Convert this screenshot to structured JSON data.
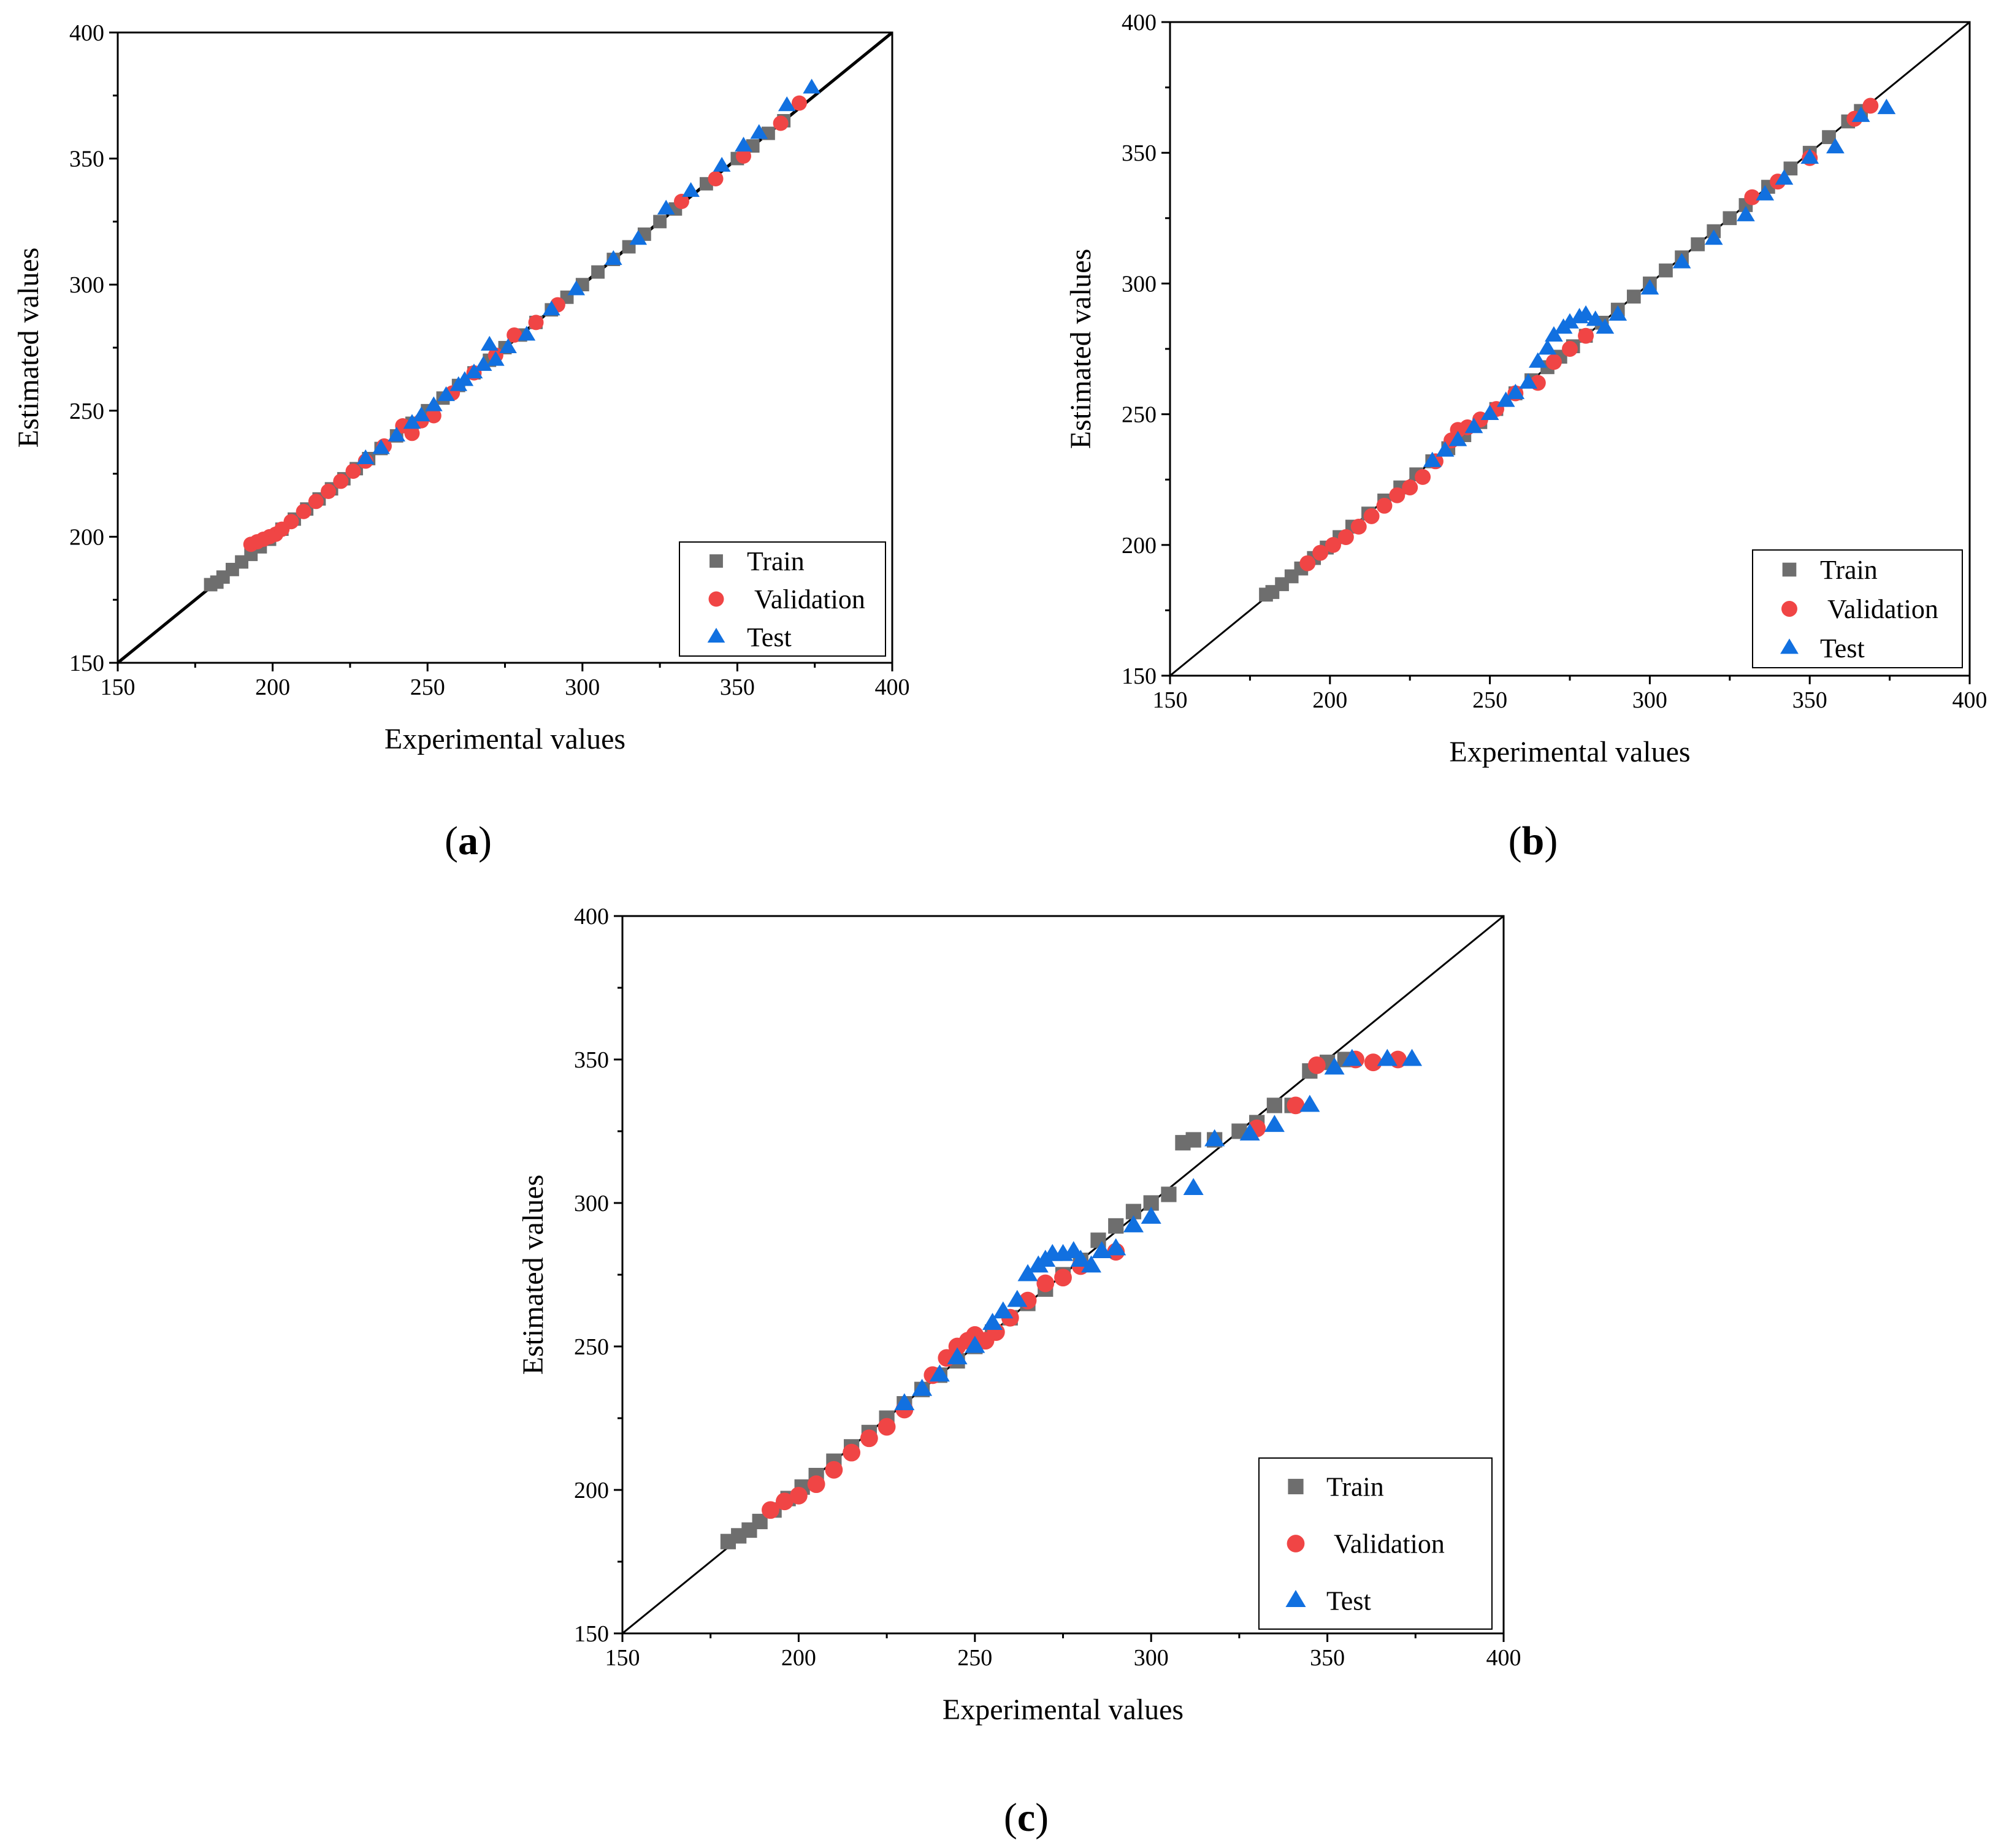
{
  "figure": {
    "colors": {
      "train": "#6e6e6e",
      "validation": "#f04545",
      "test": "#1170e0",
      "frame": "#000000"
    },
    "markers": {
      "train": "square",
      "validation": "circle",
      "test": "triangle"
    }
  },
  "chart_data": [
    {
      "type": "scatter",
      "id": "a",
      "panel_label": {
        "open": "(",
        "letter": "a",
        "close": ")"
      },
      "title": "",
      "xlabel": "Experimental values",
      "ylabel": "Estimated values",
      "xlim": [
        150,
        400
      ],
      "ylim": [
        150,
        400
      ],
      "xticks": [
        150,
        200,
        250,
        300,
        350,
        400
      ],
      "yticks": [
        150,
        200,
        250,
        300,
        350,
        400
      ],
      "grid": false,
      "reference_line": "y = x",
      "legend": {
        "position": "bottom-right",
        "entries": [
          "Train",
          "Validation",
          "Test"
        ]
      },
      "series": [
        {
          "name": "Train",
          "x": [
            180,
            182,
            184,
            187,
            190,
            193,
            196,
            199,
            203,
            207,
            211,
            215,
            219,
            223,
            227,
            231,
            235,
            240,
            245,
            250,
            255,
            260,
            265,
            270,
            275,
            280,
            285,
            290,
            295,
            300,
            305,
            310,
            315,
            320,
            325,
            330,
            340,
            350,
            355,
            360,
            365
          ],
          "y": [
            181,
            182,
            184,
            187,
            190,
            193,
            196,
            199,
            203,
            207,
            211,
            215,
            219,
            223,
            227,
            231,
            235,
            240,
            245,
            250,
            255,
            260,
            265,
            270,
            275,
            280,
            285,
            290,
            295,
            300,
            305,
            310,
            315,
            320,
            325,
            330,
            340,
            350,
            355,
            360,
            365
          ]
        },
        {
          "name": "Validation",
          "x": [
            193,
            195,
            197,
            199,
            201,
            203,
            206,
            210,
            214,
            218,
            222,
            226,
            230,
            236,
            242,
            245,
            248,
            252,
            258,
            265,
            272,
            278,
            285,
            292,
            332,
            343,
            352,
            364,
            370
          ],
          "y": [
            197,
            198,
            199,
            200,
            201,
            203,
            206,
            210,
            214,
            218,
            222,
            226,
            230,
            236,
            244,
            241,
            246,
            248,
            257,
            265,
            272,
            280,
            285,
            292,
            333,
            342,
            351,
            364,
            372
          ]
        },
        {
          "name": "Test",
          "x": [
            230,
            235,
            240,
            245,
            248,
            252,
            256,
            260,
            262,
            265,
            268,
            270,
            272,
            276,
            282,
            290,
            298,
            310,
            318,
            327,
            335,
            345,
            352,
            357,
            366,
            374
          ],
          "y": [
            231,
            235,
            240,
            245,
            248,
            252,
            256,
            260,
            262,
            265,
            268,
            276,
            270,
            275,
            280,
            290,
            298,
            310,
            318,
            330,
            337,
            347,
            355,
            360,
            371,
            378
          ]
        }
      ]
    },
    {
      "type": "scatter",
      "id": "b",
      "panel_label": {
        "open": "(",
        "letter": "b",
        "close": ")"
      },
      "title": "",
      "xlabel": "Experimental values",
      "ylabel": "Estimated values",
      "xlim": [
        150,
        400
      ],
      "ylim": [
        150,
        400
      ],
      "xticks": [
        150,
        200,
        250,
        300,
        350,
        400
      ],
      "yticks": [
        150,
        200,
        250,
        300,
        350,
        400
      ],
      "grid": false,
      "reference_line": "y = x",
      "legend": {
        "position": "bottom-right",
        "entries": [
          "Train",
          "Validation",
          "Test"
        ]
      },
      "series": [
        {
          "name": "Train",
          "x": [
            180,
            182,
            185,
            188,
            191,
            195,
            199,
            203,
            207,
            212,
            217,
            222,
            227,
            232,
            237,
            242,
            247,
            252,
            258,
            263,
            268,
            272,
            276,
            280,
            285,
            290,
            295,
            300,
            305,
            310,
            315,
            320,
            325,
            330,
            337,
            344,
            350,
            356,
            362,
            366
          ],
          "y": [
            181,
            182,
            185,
            188,
            191,
            195,
            199,
            203,
            207,
            212,
            217,
            222,
            227,
            232,
            237,
            242,
            247,
            252,
            258,
            263,
            268,
            272,
            276,
            280,
            285,
            290,
            295,
            300,
            305,
            310,
            315,
            320,
            325,
            330,
            337,
            344,
            350,
            356,
            362,
            366
          ]
        },
        {
          "name": "Validation",
          "x": [
            193,
            197,
            201,
            205,
            209,
            213,
            217,
            221,
            225,
            229,
            233,
            238,
            240,
            243,
            247,
            252,
            258,
            265,
            270,
            275,
            280,
            332,
            340,
            350,
            364,
            369
          ],
          "y": [
            193,
            197,
            200,
            203,
            207,
            211,
            215,
            219,
            222,
            226,
            232,
            240,
            244,
            245,
            248,
            252,
            258,
            262,
            270,
            275,
            280,
            333,
            339,
            348,
            363,
            368
          ]
        },
        {
          "name": "Test",
          "x": [
            232,
            236,
            240,
            245,
            250,
            255,
            258,
            262,
            265,
            268,
            270,
            273,
            275,
            278,
            280,
            283,
            286,
            290,
            300,
            310,
            320,
            330,
            336,
            342,
            350,
            358,
            366,
            374
          ],
          "y": [
            232,
            236,
            240,
            245,
            250,
            255,
            258,
            262,
            270,
            275,
            280,
            283,
            285,
            287,
            288,
            286,
            283,
            288,
            298,
            308,
            317,
            326,
            334,
            340,
            348,
            352,
            364,
            367
          ]
        }
      ]
    },
    {
      "type": "scatter",
      "id": "c",
      "panel_label": {
        "open": "(",
        "letter": "c",
        "close": ")"
      },
      "title": "",
      "xlabel": "Experimental values",
      "ylabel": "Estimated values",
      "xlim": [
        150,
        400
      ],
      "ylim": [
        150,
        400
      ],
      "xticks": [
        150,
        200,
        250,
        300,
        350,
        400
      ],
      "yticks": [
        150,
        200,
        250,
        300,
        350,
        400
      ],
      "grid": false,
      "reference_line": "y = x",
      "legend": {
        "position": "bottom-right",
        "entries": [
          "Train",
          "Validation",
          "Test"
        ]
      },
      "series": [
        {
          "name": "Train",
          "x": [
            180,
            183,
            186,
            189,
            193,
            197,
            201,
            205,
            210,
            215,
            220,
            225,
            230,
            235,
            240,
            245,
            250,
            255,
            260,
            265,
            270,
            275,
            280,
            285,
            290,
            295,
            300,
            305,
            309,
            312,
            318,
            325,
            330,
            335,
            340,
            345,
            350,
            355
          ],
          "y": [
            182,
            184,
            186,
            189,
            193,
            197,
            201,
            205,
            210,
            215,
            220,
            225,
            230,
            235,
            240,
            245,
            250,
            255,
            260,
            265,
            270,
            275,
            280,
            287,
            292,
            297,
            300,
            303,
            321,
            322,
            322,
            325,
            328,
            334,
            334,
            346,
            349,
            350
          ]
        },
        {
          "name": "Validation",
          "x": [
            192,
            196,
            200,
            205,
            210,
            215,
            220,
            225,
            230,
            238,
            242,
            245,
            248,
            250,
            253,
            256,
            260,
            265,
            270,
            275,
            280,
            290,
            330,
            341,
            347,
            358,
            363,
            370
          ],
          "y": [
            193,
            196,
            198,
            202,
            207,
            213,
            218,
            222,
            228,
            240,
            246,
            250,
            252,
            254,
            252,
            255,
            260,
            266,
            272,
            274,
            278,
            283,
            326,
            334,
            348,
            350,
            349,
            350
          ]
        },
        {
          "name": "Test",
          "x": [
            230,
            235,
            240,
            245,
            250,
            255,
            258,
            262,
            265,
            268,
            270,
            272,
            275,
            278,
            280,
            283,
            286,
            290,
            295,
            300,
            312,
            318,
            328,
            335,
            345,
            352,
            357,
            367,
            374
          ],
          "y": [
            230,
            235,
            240,
            246,
            250,
            258,
            262,
            266,
            275,
            278,
            280,
            282,
            282,
            283,
            280,
            278,
            283,
            284,
            292,
            295,
            305,
            322,
            324,
            327,
            334,
            347,
            350,
            350,
            350
          ]
        }
      ]
    }
  ]
}
